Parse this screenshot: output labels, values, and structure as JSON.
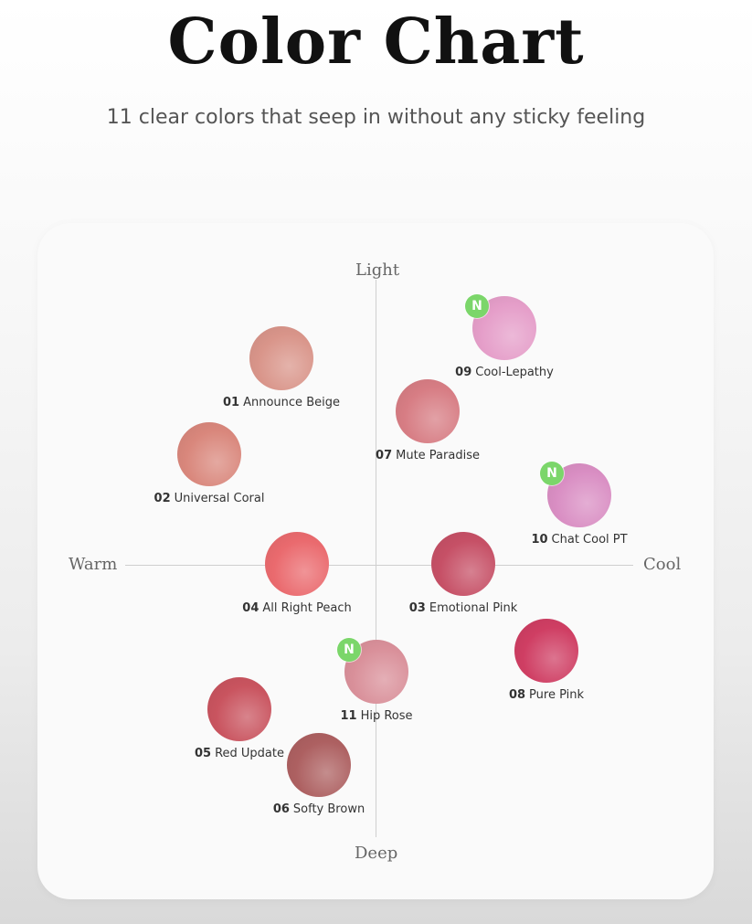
{
  "title": "Color Chart",
  "subtitle": "11 clear colors that seep in without any sticky feeling",
  "axes": {
    "top": "Light",
    "bottom": "Deep",
    "left": "Warm",
    "right": "Cool"
  },
  "badge_text": "N",
  "shades": [
    {
      "num": "01",
      "name": "Announce Beige",
      "color": "#d9958a",
      "is_new": false
    },
    {
      "num": "02",
      "name": "Universal Coral",
      "color": "#d9877c",
      "is_new": false
    },
    {
      "num": "03",
      "name": "Emotional Pink",
      "color": "#c65066",
      "is_new": false
    },
    {
      "num": "04",
      "name": "All Right Peach",
      "color": "#ea6a6e",
      "is_new": false
    },
    {
      "num": "05",
      "name": "Red Update",
      "color": "#c9545f",
      "is_new": false
    },
    {
      "num": "06",
      "name": "Softy Brown",
      "color": "#ad6061",
      "is_new": false
    },
    {
      "num": "07",
      "name": "Mute Paradise",
      "color": "#d77d84",
      "is_new": false
    },
    {
      "num": "08",
      "name": "Pure Pink",
      "color": "#cf3e63",
      "is_new": false
    },
    {
      "num": "09",
      "name": "Cool-Lepathy",
      "color": "#e59ec9",
      "is_new": true
    },
    {
      "num": "10",
      "name": "Chat Cool PT",
      "color": "#d98ec3",
      "is_new": true
    },
    {
      "num": "11",
      "name": "Hip Rose",
      "color": "#d9909a",
      "is_new": true
    }
  ],
  "colors": {
    "badge": "#7bd66a",
    "axis": "#cfcfcf",
    "card": "#fafafa"
  }
}
